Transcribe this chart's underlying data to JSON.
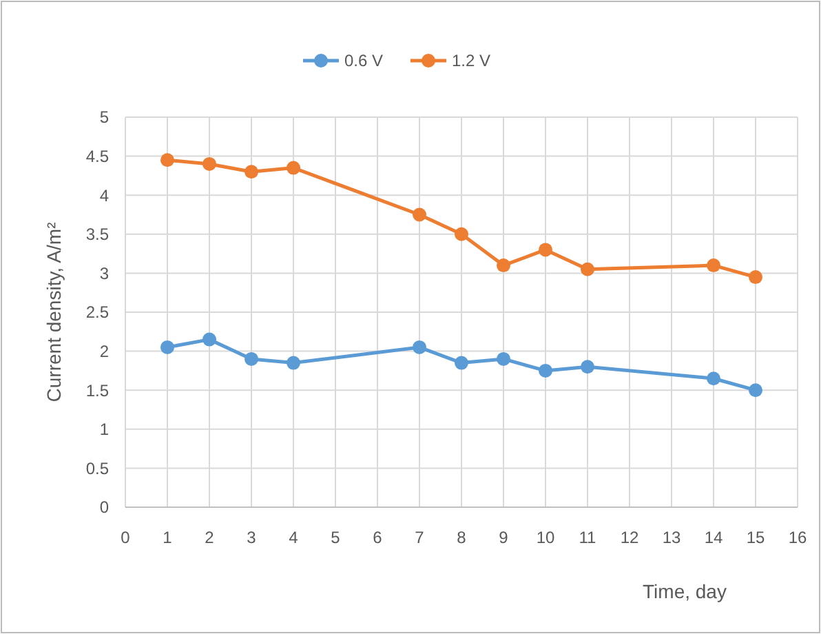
{
  "chart_data": {
    "type": "line",
    "xlabel": "Time, day",
    "ylabel": "Current density, A/m²",
    "x": [
      1,
      2,
      3,
      4,
      7,
      8,
      9,
      10,
      11,
      14,
      15
    ],
    "series": [
      {
        "name": "0.6 V",
        "color": "#5b9bd5",
        "values": [
          2.05,
          2.15,
          1.9,
          1.85,
          2.05,
          1.85,
          1.9,
          1.75,
          1.8,
          1.65,
          1.5
        ]
      },
      {
        "name": "1.2 V",
        "color": "#ed7d31",
        "values": [
          4.45,
          4.4,
          4.3,
          4.35,
          3.75,
          3.5,
          3.1,
          3.3,
          3.05,
          3.1,
          2.95
        ]
      }
    ],
    "xlim": [
      0,
      16
    ],
    "xticks": [
      0,
      1,
      2,
      3,
      4,
      5,
      6,
      7,
      8,
      9,
      10,
      11,
      12,
      13,
      14,
      15,
      16
    ],
    "ylim": [
      0,
      5
    ],
    "yticks": [
      0,
      0.5,
      1,
      1.5,
      2,
      2.5,
      3,
      3.5,
      4,
      4.5,
      5
    ],
    "grid": true,
    "legend": "top",
    "marker": "circle",
    "line_style": "solid"
  }
}
